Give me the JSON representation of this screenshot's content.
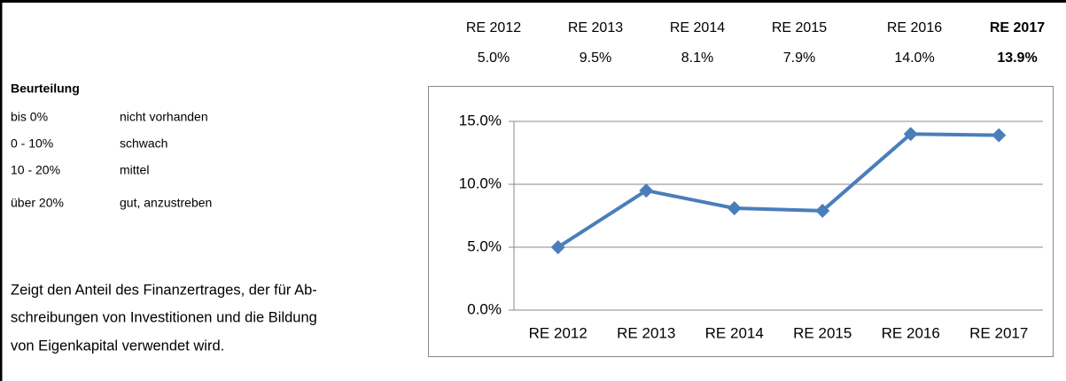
{
  "table": {
    "header": [
      "RE 2012",
      "RE 2013",
      "RE 2014",
      "RE 2015",
      "RE 2016",
      "RE 2017"
    ],
    "values": [
      "5.0%",
      "9.5%",
      "8.1%",
      "7.9%",
      "14.0%",
      "13.9%"
    ]
  },
  "rating": {
    "title": "Beurteilung",
    "rows": [
      [
        "bis 0%",
        "nicht vorhanden"
      ],
      [
        "0 - 10%",
        "schwach"
      ],
      [
        "10 - 20%",
        "mittel"
      ],
      [
        "über 20%",
        "gut, anzustreben"
      ]
    ]
  },
  "description": [
    "Zeigt den Anteil des Finanzertrages, der für Ab-",
    "schreibungen von Investitionen und die Bildung",
    "von Eigenkapital verwendet wird."
  ],
  "chart_data": {
    "type": "line",
    "categories": [
      "RE 2012",
      "RE 2013",
      "RE 2014",
      "RE 2015",
      "RE 2016",
      "RE 2017"
    ],
    "series": [
      {
        "name": "RE",
        "color": "#4a7ebb",
        "values": [
          5.0,
          9.5,
          8.1,
          7.9,
          14.0,
          13.9
        ]
      }
    ],
    "ylim": [
      0,
      15
    ],
    "yticks": [
      {
        "value": 0,
        "label": "0.0%"
      },
      {
        "value": 5,
        "label": "5.0%"
      },
      {
        "value": 10,
        "label": "10.0%"
      },
      {
        "value": 15,
        "label": "15.0%"
      }
    ],
    "grid": true
  }
}
